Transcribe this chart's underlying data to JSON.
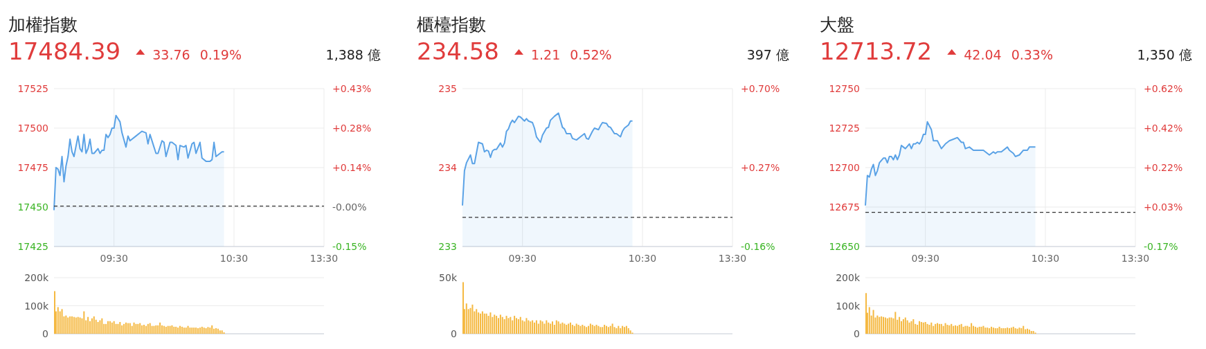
{
  "chart_data": [
    {
      "type": "area",
      "title": "加權指數",
      "annotations": [
        "17484.39",
        "33.76",
        "0.19%",
        "1,388 億"
      ],
      "categories": [
        null,
        null,
        null,
        null,
        null,
        null,
        null,
        null,
        null,
        null,
        null,
        null,
        null,
        null,
        null,
        null,
        null,
        null,
        null,
        null,
        null,
        null,
        null,
        null,
        null,
        null,
        null,
        null,
        null,
        null,
        "09:30",
        null,
        null,
        null,
        null,
        null,
        null,
        null,
        null,
        null,
        null,
        null,
        null,
        null,
        null,
        null,
        null,
        null,
        null,
        null,
        null,
        null,
        null,
        null,
        null,
        null,
        null,
        null,
        null,
        null,
        null,
        null,
        null,
        null,
        null,
        null,
        null,
        null,
        null,
        null,
        null,
        null,
        null,
        null,
        null,
        null,
        null,
        null,
        null,
        null,
        null,
        null,
        null,
        null,
        null,
        null,
        null,
        null,
        null,
        null,
        "10:30",
        null,
        null,
        null,
        null,
        null,
        null,
        null,
        null,
        null,
        null,
        null,
        null,
        null,
        null,
        null,
        null,
        null,
        null,
        null,
        null,
        null,
        null,
        null,
        null,
        null,
        null,
        null,
        null,
        null,
        null,
        null,
        null,
        null,
        null,
        null,
        null,
        null,
        null,
        null,
        null,
        null,
        null,
        null,
        null,
        "13:30"
      ],
      "values": [
        17448,
        17475,
        17474,
        17470,
        17482,
        17466,
        17476,
        17482,
        17493,
        17485,
        17482,
        null,
        17495,
        17487,
        17485,
        17496,
        17484,
        17487,
        17493,
        17484,
        17484,
        null,
        17487,
        17484,
        17486,
        17486,
        17496,
        17494,
        17496,
        17500,
        17500,
        17508,
        null,
        17504,
        17497,
        null,
        17488,
        17495,
        17492,
        null,
        null,
        17495,
        null,
        17497,
        17498,
        null,
        17497,
        17490,
        17496,
        null,
        17488,
        17484,
        17484,
        null,
        17492,
        17491,
        17482,
        null,
        17491,
        17491,
        null,
        17489,
        17480,
        17489,
        null,
        17488,
        17489,
        17481,
        null,
        17490,
        17491,
        17484,
        null,
        17491,
        17481,
        null,
        17479,
        null,
        17479,
        17480,
        17491,
        17482,
        17483,
        null,
        17485,
        17485,
        null,
        null,
        null,
        null,
        null,
        null,
        null,
        null,
        null,
        null,
        null,
        null,
        null,
        null,
        null,
        null,
        null,
        null,
        null,
        null,
        null,
        null,
        null,
        null,
        null,
        null,
        null,
        null,
        null,
        null,
        null,
        null,
        null,
        null,
        null,
        null,
        null,
        null,
        null,
        null,
        null,
        null,
        null,
        null,
        null,
        null,
        null,
        null,
        null,
        null
      ],
      "color": "#5aa2e6",
      "ylim": [
        17425,
        17525
      ],
      "yticks": [
        17425,
        17450,
        17475,
        17500,
        17525
      ],
      "y2lim": [
        -0.147,
        0.426
      ],
      "y2ticks": [
        {
          "value": -0.147,
          "label": "-0.15%"
        },
        {
          "value": -0.004,
          "label": "-0.00%"
        },
        {
          "value": 0.14,
          "label": "+0.14%"
        },
        {
          "value": 0.283,
          "label": "+0.28%"
        },
        {
          "value": 0.426,
          "label": "+0.43%"
        }
      ],
      "ref_lines": [
        {
          "axis": "y",
          "value": 17450.63,
          "color": "#333333",
          "line_style": "dashed"
        }
      ],
      "grid": true
    },
    {
      "type": "area",
      "title": "櫃檯指數",
      "annotations": [
        "234.58",
        "1.21",
        "0.52%",
        "397 億"
      ],
      "categories": [
        null,
        null,
        null,
        null,
        null,
        null,
        null,
        null,
        null,
        null,
        null,
        null,
        null,
        null,
        null,
        null,
        null,
        null,
        null,
        null,
        null,
        null,
        null,
        null,
        null,
        null,
        null,
        null,
        null,
        null,
        "09:30",
        null,
        null,
        null,
        null,
        null,
        null,
        null,
        null,
        null,
        null,
        null,
        null,
        null,
        null,
        null,
        null,
        null,
        null,
        null,
        null,
        null,
        null,
        null,
        null,
        null,
        null,
        null,
        null,
        null,
        null,
        null,
        null,
        null,
        null,
        null,
        null,
        null,
        null,
        null,
        null,
        null,
        null,
        null,
        null,
        null,
        null,
        null,
        null,
        null,
        null,
        null,
        null,
        null,
        null,
        null,
        null,
        null,
        null,
        null,
        "10:30",
        null,
        null,
        null,
        null,
        null,
        null,
        null,
        null,
        null,
        null,
        null,
        null,
        null,
        null,
        null,
        null,
        null,
        null,
        null,
        null,
        null,
        null,
        null,
        null,
        null,
        null,
        null,
        null,
        null,
        null,
        null,
        null,
        null,
        null,
        null,
        null,
        null,
        null,
        null,
        null,
        null,
        null,
        null,
        null,
        "13:30"
      ],
      "values": [
        233.52,
        233.96,
        234.06,
        null,
        234.16,
        234.05,
        234.05,
        null,
        234.32,
        null,
        234.3,
        234.2,
        234.22,
        234.21,
        234.13,
        234.21,
        234.23,
        234.23,
        null,
        234.31,
        234.26,
        234.31,
        234.46,
        234.49,
        234.56,
        234.6,
        234.57,
        234.61,
        234.65,
        234.64,
        null,
        234.59,
        234.62,
        234.59,
        null,
        234.57,
        234.5,
        234.39,
        null,
        234.32,
        234.41,
        null,
        234.5,
        234.51,
        234.6,
        null,
        234.65,
        234.67,
        234.69,
        null,
        234.51,
        234.49,
        234.43,
        null,
        234.43,
        234.37,
        null,
        234.35,
        null,
        234.39,
        null,
        234.43,
        234.37,
        234.36,
        null,
        234.46,
        234.5,
        null,
        234.48,
        234.53,
        234.57,
        null,
        234.56,
        234.52,
        234.51,
        null,
        234.43,
        234.43,
        null,
        234.39,
        234.46,
        234.5,
        null,
        234.54,
        234.59,
        234.59,
        null,
        null,
        null,
        null,
        null,
        null,
        null,
        null,
        null,
        null,
        null,
        null,
        null,
        null,
        null,
        null,
        null,
        null,
        null,
        null,
        null,
        null,
        null,
        null,
        null,
        null,
        null,
        null,
        null,
        null,
        null,
        null,
        null,
        null,
        null,
        null,
        null,
        null,
        null,
        null,
        null,
        null,
        null,
        null,
        null,
        null,
        null,
        null,
        null,
        null
      ],
      "color": "#5aa2e6",
      "ylim": [
        233,
        235
      ],
      "yticks": [
        233,
        234,
        235
      ],
      "y2lim": [
        -0.159,
        0.698
      ],
      "y2ticks": [
        {
          "value": -0.159,
          "label": "-0.16%"
        },
        {
          "value": 0.27,
          "label": "+0.27%"
        },
        {
          "value": 0.698,
          "label": "+0.70%"
        }
      ],
      "ref_lines": [
        {
          "axis": "y",
          "value": 233.37,
          "color": "#333333",
          "line_style": "dashed"
        }
      ],
      "grid": true
    },
    {
      "type": "area",
      "title": "大盤",
      "annotations": [
        "12713.72",
        "42.04",
        "0.33%",
        "1,350 億"
      ],
      "categories": [
        null,
        null,
        null,
        null,
        null,
        null,
        null,
        null,
        null,
        null,
        null,
        null,
        null,
        null,
        null,
        null,
        null,
        null,
        null,
        null,
        null,
        null,
        null,
        null,
        null,
        null,
        null,
        null,
        null,
        null,
        "09:30",
        null,
        null,
        null,
        null,
        null,
        null,
        null,
        null,
        null,
        null,
        null,
        null,
        null,
        null,
        null,
        null,
        null,
        null,
        null,
        null,
        null,
        null,
        null,
        null,
        null,
        null,
        null,
        null,
        null,
        null,
        null,
        null,
        null,
        null,
        null,
        null,
        null,
        null,
        null,
        null,
        null,
        null,
        null,
        null,
        null,
        null,
        null,
        null,
        null,
        null,
        null,
        null,
        null,
        null,
        null,
        null,
        null,
        null,
        null,
        "10:30",
        null,
        null,
        null,
        null,
        null,
        null,
        null,
        null,
        null,
        null,
        null,
        null,
        null,
        null,
        null,
        null,
        null,
        null,
        null,
        null,
        null,
        null,
        null,
        null,
        null,
        null,
        null,
        null,
        null,
        null,
        null,
        null,
        null,
        null,
        null,
        null,
        null,
        null,
        null,
        null,
        null,
        null,
        null,
        null,
        "13:30"
      ],
      "values": [
        12676,
        12695,
        12694,
        12699,
        12702,
        12695,
        12698,
        12703,
        null,
        12706,
        12706,
        12703,
        12707,
        12707,
        12705,
        12708,
        12705,
        12708,
        12714,
        12713,
        12712,
        null,
        12715,
        12712,
        12715,
        12715,
        12716,
        12715,
        12717,
        12721,
        12721,
        12729,
        null,
        12724,
        12717,
        null,
        12717,
        null,
        12712,
        null,
        12715,
        null,
        12717,
        null,
        12718,
        null,
        12719,
        null,
        12716,
        12716,
        12712,
        null,
        12713,
        null,
        12711,
        null,
        null,
        12711,
        null,
        12711,
        null,
        12709,
        12708,
        null,
        12710,
        12709,
        12710,
        null,
        12710,
        null,
        null,
        12713,
        12711,
        null,
        12709,
        12707,
        null,
        12708,
        null,
        12711,
        null,
        12711,
        12713,
        null,
        12713,
        12713,
        null,
        null,
        null,
        null,
        null,
        null,
        null,
        null,
        null,
        null,
        null,
        null,
        null,
        null,
        null,
        null,
        null,
        null,
        null,
        null,
        null,
        null,
        null,
        null,
        null,
        null,
        null,
        null,
        null,
        null,
        null,
        null,
        null,
        null,
        null,
        null,
        null,
        null,
        null,
        null,
        null,
        null,
        null,
        null,
        null,
        null,
        null,
        null,
        null,
        null
      ],
      "color": "#5aa2e6",
      "ylim": [
        12650,
        12750
      ],
      "yticks": [
        12650,
        12675,
        12700,
        12725,
        12750
      ],
      "y2lim": [
        -0.171,
        0.618
      ],
      "y2ticks": [
        {
          "value": -0.171,
          "label": "-0.17%"
        },
        {
          "value": 0.026,
          "label": "+0.03%"
        },
        {
          "value": 0.224,
          "label": "+0.22%"
        },
        {
          "value": 0.421,
          "label": "+0.42%"
        },
        {
          "value": 0.618,
          "label": "+0.62%"
        }
      ],
      "ref_lines": [
        {
          "axis": "y",
          "value": 12671.68,
          "color": "#333333",
          "line_style": "dashed"
        }
      ],
      "grid": true
    },
    {
      "type": "bar",
      "categories": [
        null,
        null,
        null,
        null,
        null,
        null,
        null,
        null,
        null,
        null,
        null,
        null,
        null,
        null,
        null,
        null,
        null,
        null,
        null,
        null,
        null,
        null,
        null,
        null,
        null,
        null,
        null,
        null,
        null,
        null,
        null,
        null,
        null,
        null,
        null,
        null,
        null,
        null,
        null,
        null,
        null,
        null,
        null,
        null,
        null,
        null,
        null,
        null,
        null,
        null,
        null,
        null,
        null,
        null,
        null,
        null,
        null,
        null,
        null,
        null,
        null,
        null,
        null,
        null,
        null,
        null,
        null,
        null,
        null,
        null,
        null,
        null,
        null,
        null,
        null,
        null,
        null,
        null,
        null,
        null,
        null,
        null,
        null,
        null,
        null,
        null,
        null,
        null,
        null,
        null,
        null,
        null,
        null,
        null,
        null,
        null,
        null,
        null,
        null,
        null,
        null,
        null,
        null,
        null,
        null,
        null,
        null,
        null,
        null,
        null,
        null,
        null,
        null,
        null,
        null,
        null,
        null,
        null,
        null,
        null,
        null,
        null,
        null,
        null,
        null,
        null,
        null,
        null,
        null,
        null,
        null,
        null,
        null,
        null,
        null,
        null
      ],
      "values": [
        152000,
        80000,
        95000,
        80000,
        88000,
        62000,
        65000,
        58000,
        62000,
        62000,
        60000,
        58000,
        60000,
        58000,
        55000,
        80000,
        48000,
        60000,
        45000,
        55000,
        62000,
        50000,
        42000,
        48000,
        55000,
        35000,
        35000,
        45000,
        45000,
        40000,
        45000,
        35000,
        35000,
        42000,
        30000,
        35000,
        40000,
        38000,
        38000,
        28000,
        40000,
        35000,
        35000,
        38000,
        30000,
        32000,
        28000,
        35000,
        38000,
        28000,
        28000,
        30000,
        30000,
        40000,
        30000,
        28000,
        25000,
        28000,
        28000,
        30000,
        25000,
        25000,
        22000,
        28000,
        25000,
        22000,
        22000,
        28000,
        22000,
        22000,
        22000,
        22000,
        20000,
        22000,
        25000,
        22000,
        20000,
        24000,
        22000,
        30000,
        18000,
        20000,
        18000,
        12000,
        12000,
        5000,
        null,
        null,
        null,
        null,
        null,
        null,
        null,
        null,
        null,
        null,
        null,
        null,
        null,
        null,
        null,
        null,
        null,
        null,
        null,
        null,
        null,
        null,
        null,
        null,
        null,
        null,
        null,
        null,
        null,
        null,
        null,
        null,
        null,
        null,
        null,
        null,
        null,
        null,
        null,
        null,
        null,
        null,
        null,
        null,
        null,
        null,
        null,
        null,
        null,
        null
      ],
      "color": "#f5b942",
      "ylim": [
        0,
        200000
      ],
      "yticks": [
        0,
        {
          "value": 100000,
          "label": "100k"
        },
        {
          "value": 200000,
          "label": "200k"
        }
      ],
      "grid": "y"
    },
    {
      "type": "bar",
      "categories": [
        null,
        null,
        null,
        null,
        null,
        null,
        null,
        null,
        null,
        null,
        null,
        null,
        null,
        null,
        null,
        null,
        null,
        null,
        null,
        null,
        null,
        null,
        null,
        null,
        null,
        null,
        null,
        null,
        null,
        null,
        null,
        null,
        null,
        null,
        null,
        null,
        null,
        null,
        null,
        null,
        null,
        null,
        null,
        null,
        null,
        null,
        null,
        null,
        null,
        null,
        null,
        null,
        null,
        null,
        null,
        null,
        null,
        null,
        null,
        null,
        null,
        null,
        null,
        null,
        null,
        null,
        null,
        null,
        null,
        null,
        null,
        null,
        null,
        null,
        null,
        null,
        null,
        null,
        null,
        null,
        null,
        null,
        null,
        null,
        null,
        null,
        null,
        null,
        null,
        null,
        null,
        null,
        null,
        null,
        null,
        null,
        null,
        null,
        null,
        null,
        null,
        null,
        null,
        null,
        null,
        null,
        null,
        null,
        null,
        null,
        null,
        null,
        null,
        null,
        null,
        null,
        null,
        null,
        null,
        null,
        null,
        null,
        null,
        null,
        null,
        null,
        null,
        null,
        null,
        null,
        null,
        null,
        null,
        null,
        null,
        null
      ],
      "values": [
        46000,
        22000,
        27000,
        22000,
        23000,
        26000,
        20000,
        22000,
        19000,
        18000,
        20000,
        18000,
        18000,
        16000,
        19000,
        15000,
        17000,
        16000,
        14000,
        17000,
        15000,
        13000,
        16000,
        14000,
        15000,
        12000,
        16000,
        14000,
        13000,
        15000,
        12000,
        11000,
        14000,
        12000,
        11000,
        12000,
        10000,
        12000,
        9000,
        12000,
        11000,
        9000,
        12000,
        10000,
        9000,
        11000,
        8000,
        12000,
        11000,
        9000,
        10000,
        9000,
        8000,
        9000,
        10000,
        8000,
        7000,
        9000,
        8000,
        7000,
        8000,
        7000,
        6000,
        7000,
        9000,
        8000,
        7000,
        8000,
        7000,
        6000,
        6000,
        8000,
        7000,
        6000,
        7000,
        9000,
        6000,
        5000,
        7000,
        5000,
        7000,
        6000,
        7000,
        5000,
        3000,
        1000,
        null,
        null,
        null,
        null,
        null,
        null,
        null,
        null,
        null,
        null,
        null,
        null,
        null,
        null,
        null,
        null,
        null,
        null,
        null,
        null,
        null,
        null,
        null,
        null,
        null,
        null,
        null,
        null,
        null,
        null,
        null,
        null,
        null,
        null,
        null,
        null,
        null,
        null,
        null,
        null,
        null,
        null,
        null,
        null,
        null,
        null,
        null,
        null,
        null,
        null
      ],
      "color": "#f5b942",
      "ylim": [
        0,
        50000
      ],
      "yticks": [
        0,
        {
          "value": 50000,
          "label": "50k"
        }
      ]
    },
    {
      "type": "bar",
      "categories": [
        null,
        null,
        null,
        null,
        null,
        null,
        null,
        null,
        null,
        null,
        null,
        null,
        null,
        null,
        null,
        null,
        null,
        null,
        null,
        null,
        null,
        null,
        null,
        null,
        null,
        null,
        null,
        null,
        null,
        null,
        null,
        null,
        null,
        null,
        null,
        null,
        null,
        null,
        null,
        null,
        null,
        null,
        null,
        null,
        null,
        null,
        null,
        null,
        null,
        null,
        null,
        null,
        null,
        null,
        null,
        null,
        null,
        null,
        null,
        null,
        null,
        null,
        null,
        null,
        null,
        null,
        null,
        null,
        null,
        null,
        null,
        null,
        null,
        null,
        null,
        null,
        null,
        null,
        null,
        null,
        null,
        null,
        null,
        null,
        null,
        null,
        null,
        null,
        null,
        null,
        null,
        null,
        null,
        null,
        null,
        null,
        null,
        null,
        null,
        null,
        null,
        null,
        null,
        null,
        null,
        null,
        null,
        null,
        null,
        null,
        null,
        null,
        null,
        null,
        null,
        null,
        null,
        null,
        null,
        null,
        null,
        null,
        null,
        null,
        null,
        null,
        null,
        null,
        null,
        null,
        null,
        null,
        null,
        null,
        null,
        null
      ],
      "values": [
        145000,
        75000,
        95000,
        65000,
        85000,
        58000,
        65000,
        60000,
        62000,
        60000,
        58000,
        55000,
        58000,
        58000,
        55000,
        78000,
        50000,
        60000,
        45000,
        52000,
        58000,
        48000,
        40000,
        45000,
        52000,
        35000,
        32000,
        45000,
        42000,
        40000,
        42000,
        35000,
        32000,
        40000,
        28000,
        35000,
        38000,
        35000,
        35000,
        28000,
        38000,
        32000,
        30000,
        35000,
        28000,
        30000,
        28000,
        32000,
        35000,
        25000,
        28000,
        28000,
        25000,
        38000,
        28000,
        25000,
        22000,
        25000,
        25000,
        28000,
        22000,
        22000,
        20000,
        25000,
        22000,
        20000,
        20000,
        25000,
        20000,
        20000,
        20000,
        22000,
        20000,
        22000,
        25000,
        20000,
        18000,
        22000,
        20000,
        28000,
        16000,
        18000,
        15000,
        10000,
        10000,
        4000,
        null,
        null,
        null,
        null,
        null,
        null,
        null,
        null,
        null,
        null,
        null,
        null,
        null,
        null,
        null,
        null,
        null,
        null,
        null,
        null,
        null,
        null,
        null,
        null,
        null,
        null,
        null,
        null,
        null,
        null,
        null,
        null,
        null,
        null,
        null,
        null,
        null,
        null,
        null,
        null,
        null,
        null,
        null,
        null,
        null,
        null,
        null,
        null,
        null,
        null
      ],
      "color": "#f5b942",
      "ylim": [
        0,
        200000
      ],
      "yticks": [
        0,
        {
          "value": 100000,
          "label": "100k"
        },
        {
          "value": 200000,
          "label": "200k"
        }
      ],
      "grid": "y"
    }
  ]
}
